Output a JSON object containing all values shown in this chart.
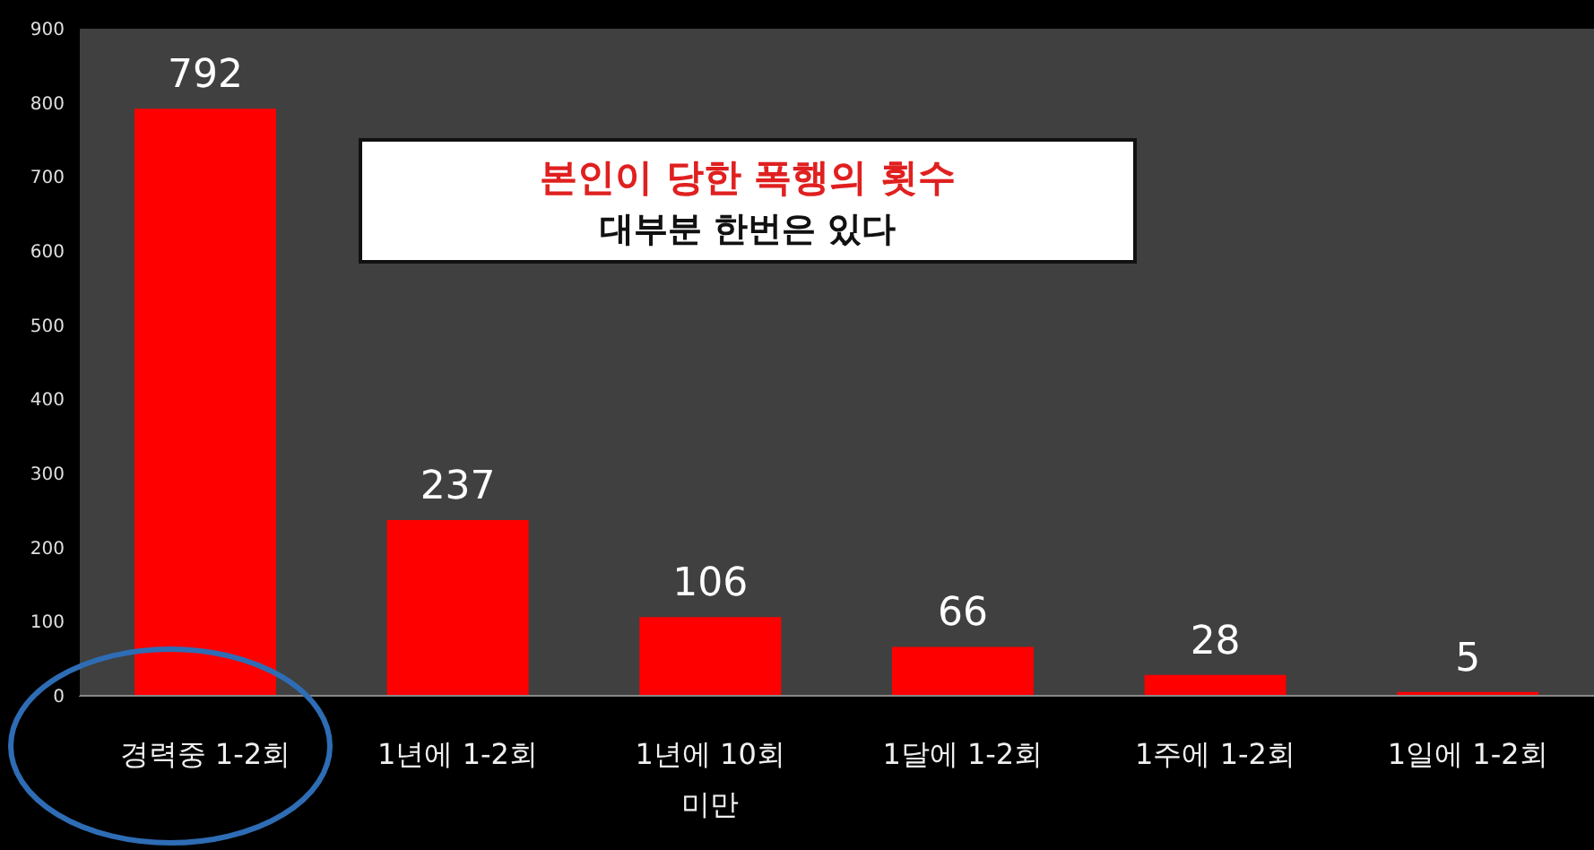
{
  "chart_data": {
    "type": "bar",
    "title": "본인이 당한 폭행의 횟수",
    "subtitle": "대부분 한번은 있다",
    "categories": [
      "경력중 1-2회",
      "1년에 1-2회",
      "1년에 10회 미만",
      "1달에 1-2회",
      "1주에 1-2회",
      "1일에 1-2회"
    ],
    "values": [
      792,
      237,
      106,
      66,
      28,
      5
    ],
    "color": "#ff0000",
    "ylim": [
      0,
      900
    ],
    "yticks": [
      0,
      100,
      200,
      300,
      400,
      500,
      600,
      700,
      800,
      900
    ],
    "data_labels": true,
    "grid": false
  }
}
